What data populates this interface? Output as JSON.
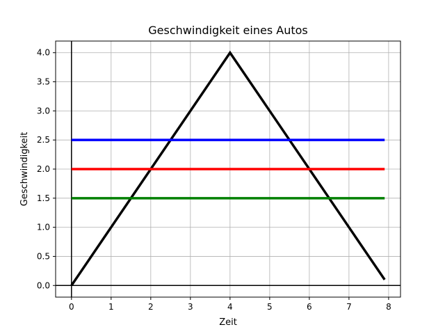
{
  "chart_data": {
    "type": "line",
    "title": "Geschwindigkeit eines Autos",
    "xlabel": "Zeit",
    "ylabel": "Geschwindigkeit",
    "xlim": [
      -0.4,
      8.3
    ],
    "ylim": [
      -0.2,
      4.2
    ],
    "xticks": [
      0,
      1,
      2,
      3,
      4,
      5,
      6,
      7,
      8
    ],
    "xtick_labels": [
      "0",
      "1",
      "2",
      "3",
      "4",
      "5",
      "6",
      "7",
      "8"
    ],
    "yticks": [
      0.0,
      0.5,
      1.0,
      1.5,
      2.0,
      2.5,
      3.0,
      3.5,
      4.0
    ],
    "ytick_labels": [
      "0.0",
      "0.5",
      "1.0",
      "1.5",
      "2.0",
      "2.5",
      "3.0",
      "3.5",
      "4.0"
    ],
    "grid": true,
    "series": [
      {
        "color": "#000000",
        "x": [
          0,
          4,
          7.9
        ],
        "y": [
          0,
          4,
          0.1
        ]
      },
      {
        "color": "#0000ff",
        "x": [
          0,
          7.9
        ],
        "y": [
          2.5,
          2.5
        ]
      },
      {
        "color": "#ff0000",
        "x": [
          0,
          7.9
        ],
        "y": [
          2.0,
          2.0
        ]
      },
      {
        "color": "#008000",
        "x": [
          0,
          7.9
        ],
        "y": [
          1.5,
          1.5
        ]
      }
    ],
    "reference_lines": [
      {
        "orientation": "horizontal",
        "value": 0,
        "color": "#000000"
      },
      {
        "orientation": "vertical",
        "value": 0,
        "color": "#000000"
      }
    ]
  }
}
